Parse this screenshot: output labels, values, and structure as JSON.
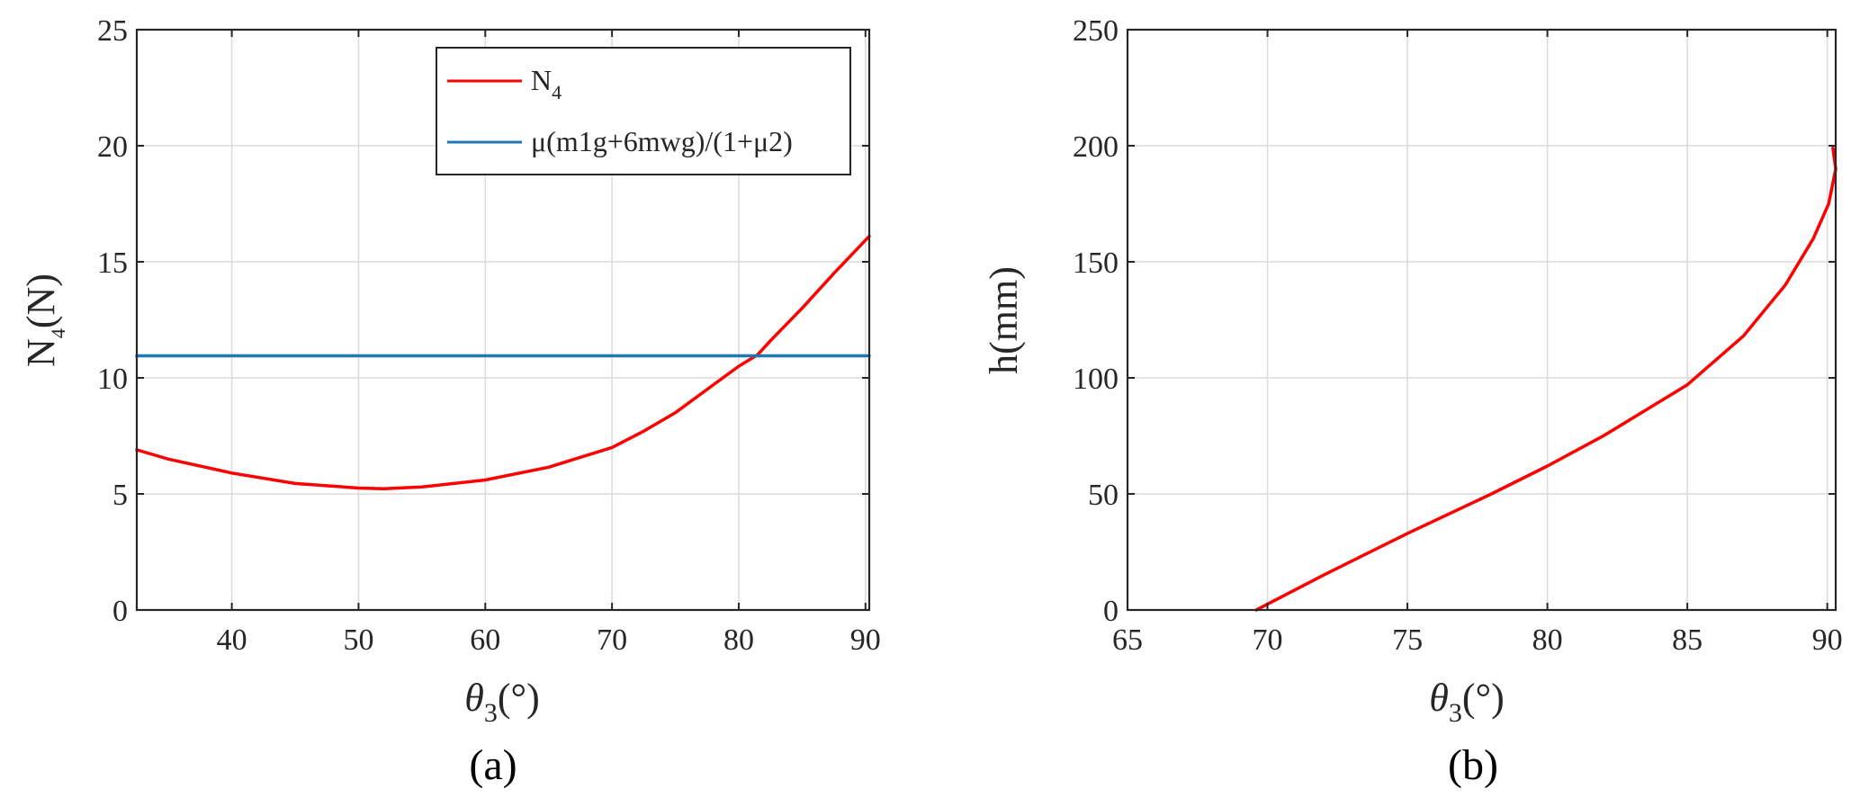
{
  "chart_data": [
    {
      "type": "line",
      "panel_label": "(a)",
      "xlabel_main": "θ",
      "xlabel_sub": "3",
      "xlabel_unit": "(°)",
      "ylabel_main": "N",
      "ylabel_sub": "4",
      "ylabel_unit": "(N)",
      "xlim": [
        32.5,
        90.3
      ],
      "ylim": [
        0,
        25
      ],
      "xticks": [
        40,
        50,
        60,
        70,
        80,
        90
      ],
      "yticks": [
        0,
        5,
        10,
        15,
        20,
        25
      ],
      "grid": true,
      "legend_position": "top-right",
      "series": [
        {
          "name": "N",
          "name_sub": "4",
          "color": "#ff0000",
          "x": [
            32.5,
            35,
            40,
            45,
            50,
            52,
            55,
            60,
            65,
            70,
            72.5,
            75,
            77.5,
            80,
            81.5,
            82.5,
            85,
            87.5,
            90.3
          ],
          "y": [
            6.9,
            6.5,
            5.9,
            5.45,
            5.25,
            5.22,
            5.3,
            5.6,
            6.15,
            7.0,
            7.7,
            8.5,
            9.5,
            10.5,
            11.0,
            11.6,
            13.0,
            14.5,
            16.1
          ]
        },
        {
          "name": "μ(m1g+6mwg)/(1+μ2)",
          "color": "#1f77b4",
          "x": [
            32.5,
            90.3
          ],
          "y": [
            10.95,
            10.95
          ]
        }
      ]
    },
    {
      "type": "line",
      "panel_label": "(b)",
      "xlabel_main": "θ",
      "xlabel_sub": "3",
      "xlabel_unit": "(°)",
      "ylabel": "h(mm)",
      "xlim": [
        65,
        90.3
      ],
      "ylim": [
        0,
        250
      ],
      "xticks": [
        65,
        70,
        75,
        80,
        85,
        90
      ],
      "yticks": [
        0,
        50,
        100,
        150,
        200,
        250
      ],
      "grid": true,
      "series": [
        {
          "color": "#ff0000",
          "x": [
            69.6,
            72,
            75,
            78,
            80,
            82,
            85,
            87,
            88.5,
            89.5,
            90.05,
            90.3,
            90.2
          ],
          "y": [
            0,
            15,
            33,
            50,
            62,
            75,
            97,
            118,
            140,
            160,
            175,
            190,
            199
          ]
        }
      ]
    }
  ]
}
